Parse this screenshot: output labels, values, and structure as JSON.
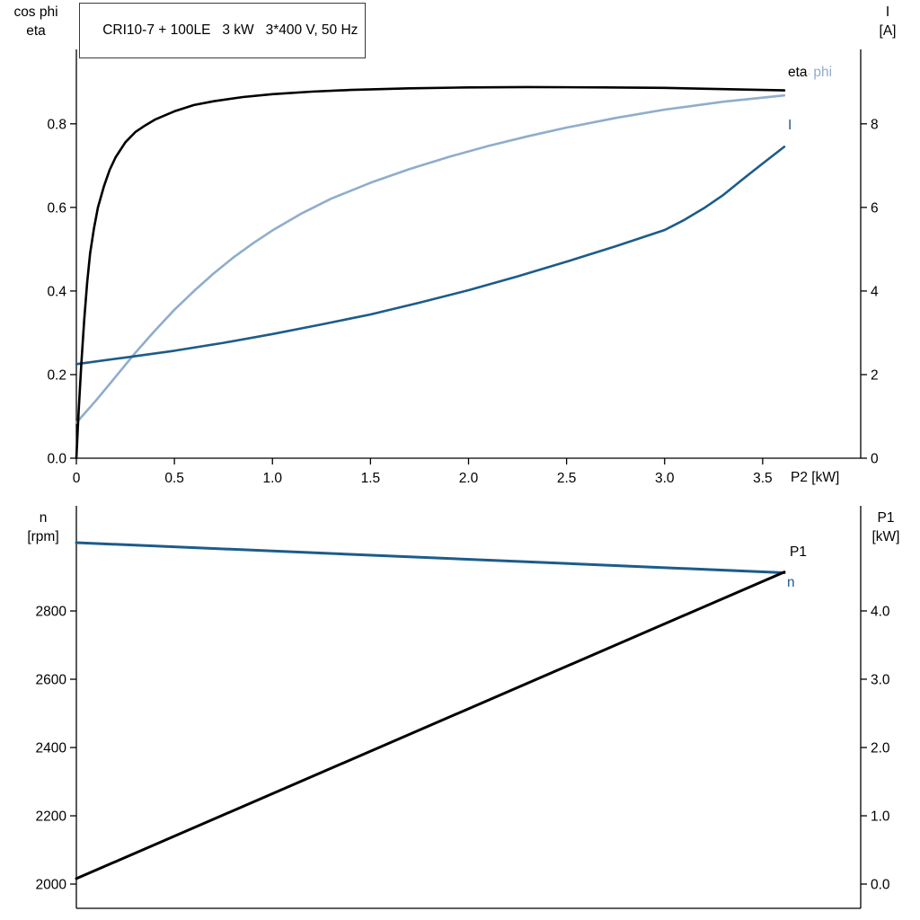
{
  "header": {
    "title": "CRI10-7 + 100LE   3 kW   3*400 V, 50 Hz"
  },
  "colors": {
    "black": "#000000",
    "light_blue": "#8fadcc",
    "dark_blue": "#1c5c8a"
  },
  "chart_data": [
    {
      "type": "line",
      "id": "upper",
      "title": "CRI10-7 + 100LE   3 kW   3*400 V, 50 Hz",
      "xlabel": "P2 [kW]",
      "axis_title_left": [
        "cos phi",
        "eta"
      ],
      "axis_title_right": [
        "I",
        "[A]"
      ],
      "xlim": [
        0,
        4.0
      ],
      "grid": false,
      "legend_position": "curve-ends-right",
      "x_ticks": {
        "values": [
          0,
          0.5,
          1,
          1.5,
          2,
          2.5,
          3,
          3.5
        ],
        "labels": [
          "0",
          "0.5",
          "1.0",
          "1.5",
          "2.0",
          "2.5",
          "3.0",
          "3.5"
        ]
      },
      "left_axis": {
        "ticks": [
          0,
          0.2,
          0.4,
          0.6,
          0.8
        ],
        "labels": [
          "0.0",
          "0.2",
          "0.4",
          "0.6",
          "0.8"
        ],
        "range": [
          0,
          0.978
        ]
      },
      "right_axis": {
        "ticks": [
          0,
          2,
          4,
          6,
          8
        ],
        "labels": [
          "0",
          "2",
          "4",
          "6",
          "8"
        ],
        "range": [
          0,
          9.78
        ]
      },
      "series": [
        {
          "name": "cos phi",
          "label": "cos phi",
          "axis": "left",
          "color": "light_blue",
          "points": [
            [
              0,
              0.085
            ],
            [
              0.1,
              0.138
            ],
            [
              0.2,
              0.195
            ],
            [
              0.3,
              0.252
            ],
            [
              0.4,
              0.305
            ],
            [
              0.5,
              0.355
            ],
            [
              0.6,
              0.4
            ],
            [
              0.7,
              0.442
            ],
            [
              0.8,
              0.48
            ],
            [
              0.9,
              0.514
            ],
            [
              1.0,
              0.545
            ],
            [
              1.15,
              0.586
            ],
            [
              1.3,
              0.621
            ],
            [
              1.5,
              0.659
            ],
            [
              1.7,
              0.692
            ],
            [
              1.9,
              0.721
            ],
            [
              2.1,
              0.747
            ],
            [
              2.3,
              0.77
            ],
            [
              2.5,
              0.791
            ],
            [
              2.75,
              0.814
            ],
            [
              3.0,
              0.834
            ],
            [
              3.3,
              0.853
            ],
            [
              3.61,
              0.868
            ]
          ]
        },
        {
          "name": "I",
          "label": "I",
          "axis": "right",
          "color": "dark_blue",
          "points": [
            [
              0,
              2.25
            ],
            [
              0.25,
              2.41
            ],
            [
              0.5,
              2.57
            ],
            [
              0.75,
              2.76
            ],
            [
              1.0,
              2.97
            ],
            [
              1.25,
              3.2
            ],
            [
              1.5,
              3.44
            ],
            [
              1.75,
              3.72
            ],
            [
              2.0,
              4.02
            ],
            [
              2.25,
              4.35
            ],
            [
              2.5,
              4.7
            ],
            [
              2.75,
              5.07
            ],
            [
              3.0,
              5.46
            ],
            [
              3.1,
              5.7
            ],
            [
              3.2,
              5.98
            ],
            [
              3.3,
              6.3
            ],
            [
              3.4,
              6.68
            ],
            [
              3.5,
              7.05
            ],
            [
              3.61,
              7.45
            ]
          ]
        },
        {
          "name": "eta",
          "label": "eta",
          "axis": "left",
          "color": "black",
          "points": [
            [
              0,
              0
            ],
            [
              0.012,
              0.115
            ],
            [
              0.025,
              0.225
            ],
            [
              0.04,
              0.33
            ],
            [
              0.055,
              0.42
            ],
            [
              0.07,
              0.49
            ],
            [
              0.09,
              0.55
            ],
            [
              0.11,
              0.6
            ],
            [
              0.14,
              0.65
            ],
            [
              0.17,
              0.69
            ],
            [
              0.2,
              0.72
            ],
            [
              0.25,
              0.756
            ],
            [
              0.3,
              0.78
            ],
            [
              0.35,
              0.796
            ],
            [
              0.4,
              0.81
            ],
            [
              0.5,
              0.83
            ],
            [
              0.6,
              0.845
            ],
            [
              0.7,
              0.854
            ],
            [
              0.85,
              0.864
            ],
            [
              1.0,
              0.871
            ],
            [
              1.2,
              0.877
            ],
            [
              1.4,
              0.881
            ],
            [
              1.7,
              0.885
            ],
            [
              2.0,
              0.887
            ],
            [
              2.3,
              0.888
            ],
            [
              2.7,
              0.887
            ],
            [
              3.0,
              0.886
            ],
            [
              3.3,
              0.883
            ],
            [
              3.61,
              0.88
            ]
          ]
        }
      ]
    },
    {
      "type": "line",
      "id": "lower",
      "xlabel": "",
      "axis_title_left": [
        "n",
        "[rpm]"
      ],
      "axis_title_right": [
        "P1",
        "[kW]"
      ],
      "xlim": [
        0,
        4.0
      ],
      "grid": false,
      "x_ticks": {
        "values": [],
        "labels": []
      },
      "left_axis": {
        "ticks": [
          2000,
          2200,
          2400,
          2600,
          2800
        ],
        "labels": [
          "2000",
          "2200",
          "2400",
          "2600",
          "2800"
        ],
        "range": [
          1929,
          3108
        ]
      },
      "right_axis": {
        "ticks": [
          0,
          1,
          2,
          3,
          4
        ],
        "labels": [
          "0.0",
          "1.0",
          "2.0",
          "3.0",
          "4.0"
        ],
        "range": [
          -0.355,
          5.539
        ]
      },
      "series": [
        {
          "name": "n",
          "label": "n",
          "axis": "left",
          "color": "dark_blue",
          "points": [
            [
              0,
              3000
            ],
            [
              3.61,
              2912
            ]
          ]
        },
        {
          "name": "P1",
          "label": "P1",
          "axis": "right",
          "color": "black",
          "points": [
            [
              0,
              0.08
            ],
            [
              3.61,
              4.57
            ]
          ]
        }
      ]
    }
  ]
}
